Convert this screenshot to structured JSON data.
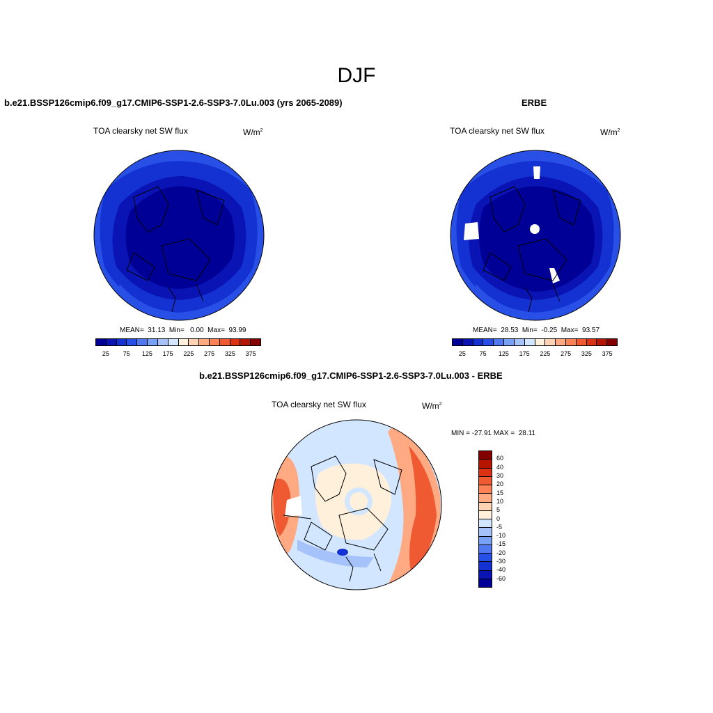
{
  "title": "DJF",
  "panels": [
    {
      "title": "b.e21.BSSP126cmip6.f09_g17.CMIP6-SSP1-2.6-SSP3-7.0Lu.003 (yrs 2065-2089)",
      "variable": "TOA clearsky net SW flux",
      "units": "W/m",
      "units_sup": "2",
      "stats": "MEAN=  31.13  Min=   0.00  Max=  93.99"
    },
    {
      "title": "ERBE",
      "variable": "TOA clearsky net SW flux",
      "units": "W/m",
      "units_sup": "2",
      "stats": "MEAN=  28.53  Min=  -0.25  Max=  93.57"
    },
    {
      "title": "b.e21.BSSP126cmip6.f09_g17.CMIP6-SSP1-2.6-SSP3-7.0Lu.003 - ERBE",
      "variable": "TOA clearsky net SW flux",
      "units": "W/m",
      "units_sup": "2",
      "stats": "MIN = -27.91 MAX =  28.11"
    }
  ],
  "colorbar_abs": {
    "colors": [
      "#000096",
      "#0a14b4",
      "#1432d2",
      "#2850e6",
      "#5078f0",
      "#78a0f5",
      "#a5c3fa",
      "#d2e6ff",
      "#fff0dc",
      "#ffd2b4",
      "#ffaa82",
      "#ff8255",
      "#f05a32",
      "#dc3214",
      "#b41400",
      "#820000"
    ],
    "ticks": [
      "25",
      "75",
      "125",
      "175",
      "225",
      "275",
      "325",
      "375"
    ]
  },
  "colorbar_diff": {
    "colors": [
      "#820000",
      "#b41400",
      "#dc3214",
      "#f05a32",
      "#ff8255",
      "#ffaa82",
      "#ffd2b4",
      "#fff0dc",
      "#d2e6ff",
      "#a5c3fa",
      "#78a0f5",
      "#5078f0",
      "#2850e6",
      "#1432d2",
      "#0a14b4",
      "#000096"
    ],
    "ticks": [
      "60",
      "40",
      "30",
      "20",
      "15",
      "10",
      "5",
      "0",
      "-5",
      "-10",
      "-15",
      "-20",
      "-30",
      "-40",
      "-60"
    ]
  }
}
